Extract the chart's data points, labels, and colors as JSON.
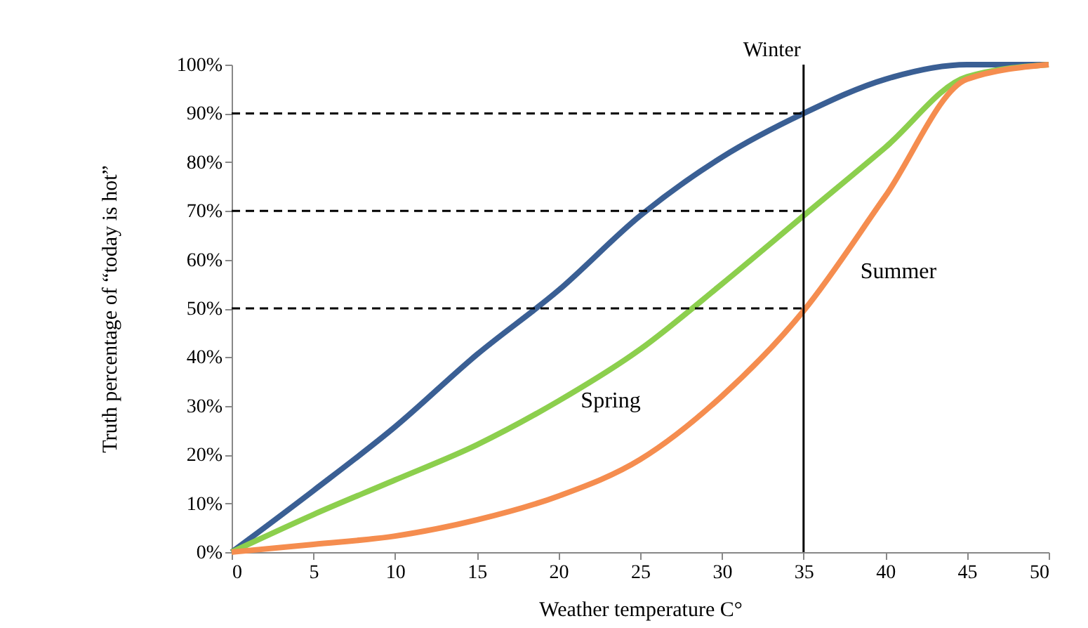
{
  "chart_data": {
    "type": "line",
    "xlabel": "Weather temperature C°",
    "ylabel": "Truth percentage of “today is hot”",
    "x": [
      0,
      5,
      10,
      15,
      20,
      25,
      30,
      35,
      40,
      45,
      50
    ],
    "series": [
      {
        "color": "#3a5f94",
        "values": [
          0,
          12.6,
          25.7,
          40.5,
          53.7,
          69,
          81,
          90,
          97,
          100,
          100
        ]
      },
      {
        "color": "#8ccf4d",
        "values": [
          0,
          7.7,
          14.8,
          22,
          31,
          41.6,
          55,
          69,
          83,
          97.5,
          100
        ]
      },
      {
        "color": "#f58d4f",
        "values": [
          0,
          1.6,
          3.3,
          6.6,
          11.5,
          19,
          32,
          49.5,
          73,
          97,
          100
        ]
      }
    ],
    "xlim": [
      0,
      50
    ],
    "xticks": [
      0,
      5,
      10,
      15,
      20,
      25,
      30,
      35,
      40,
      45,
      50
    ],
    "ylim": [
      0,
      100
    ],
    "yticks": [
      {
        "value": 0,
        "label": "0%"
      },
      {
        "value": 10,
        "label": "10%"
      },
      {
        "value": 20,
        "label": "20%"
      },
      {
        "value": 30,
        "label": "30%"
      },
      {
        "value": 40,
        "label": "40%"
      },
      {
        "value": 50,
        "label": "50%"
      },
      {
        "value": 60,
        "label": "60%"
      },
      {
        "value": 70,
        "label": "70%"
      },
      {
        "value": 80,
        "label": "80%"
      },
      {
        "value": 90,
        "label": "90%"
      },
      {
        "value": 100,
        "label": "100%"
      }
    ],
    "ref_lines": [
      {
        "axis": "x",
        "value": 35,
        "label": "Winter",
        "color": "#000000",
        "line_style": "solid"
      },
      {
        "axis": "y",
        "value": 50,
        "color": "#000000",
        "line_style": "dashed"
      },
      {
        "axis": "y",
        "value": 70,
        "color": "#000000",
        "line_style": "dashed"
      },
      {
        "axis": "y",
        "value": 90,
        "color": "#000000",
        "line_style": "dashed"
      }
    ],
    "annotations": [
      "Spring",
      "Summer"
    ],
    "grid": false,
    "marker": "none",
    "line_style": "solid"
  }
}
